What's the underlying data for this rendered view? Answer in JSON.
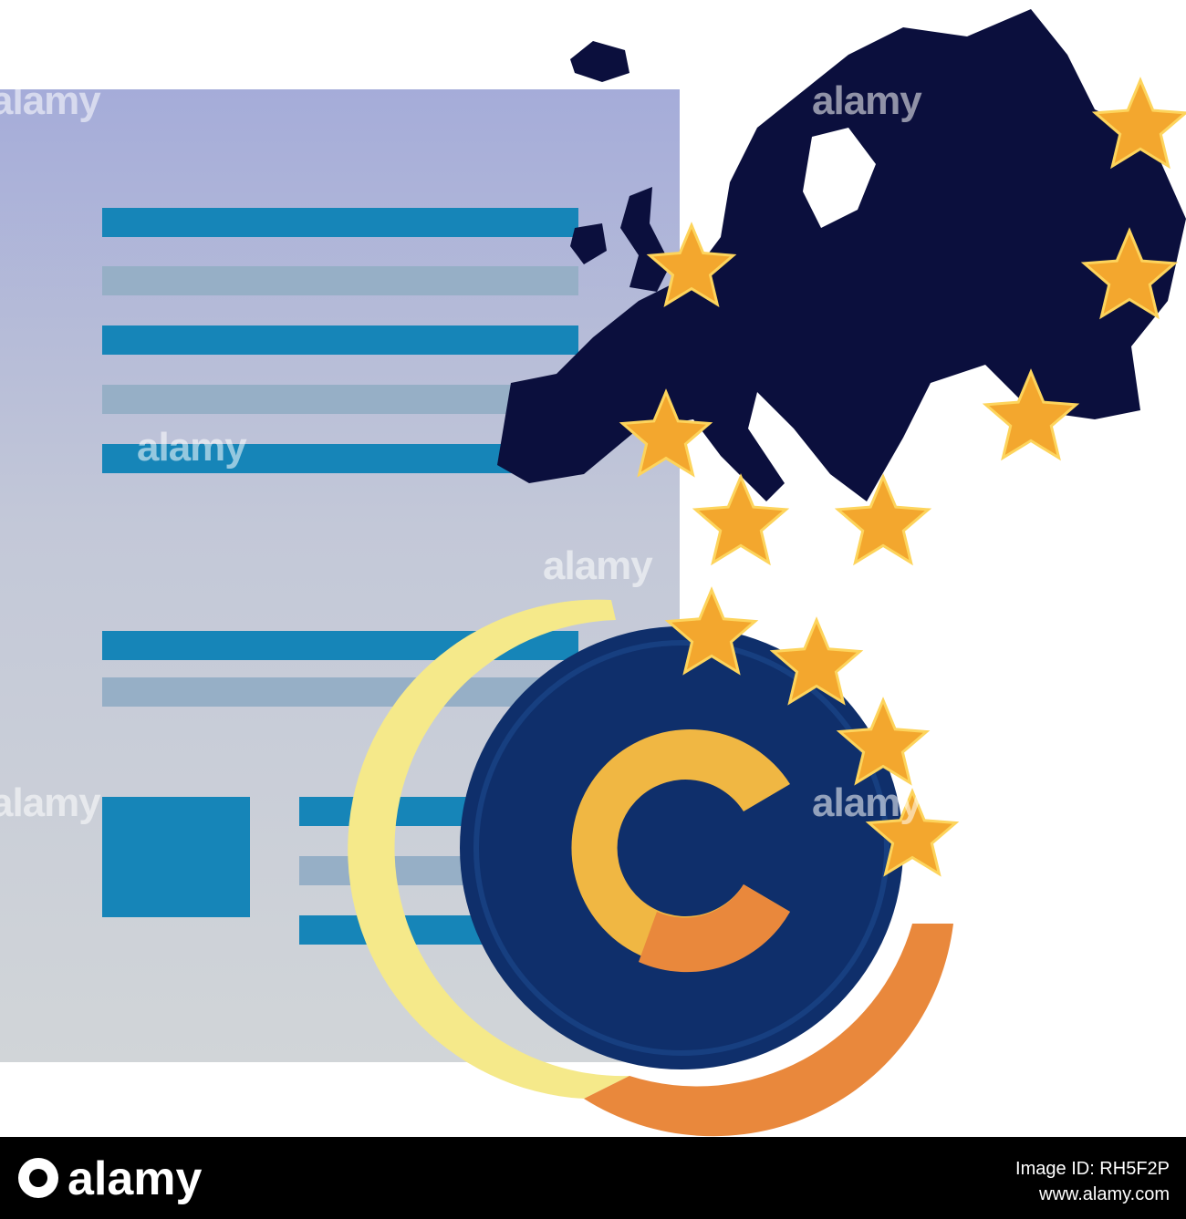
{
  "watermark": "alamy",
  "footer": {
    "logo": "alamy",
    "image_id": "Image ID: RH5F2P",
    "url": "www.alamy.com"
  }
}
